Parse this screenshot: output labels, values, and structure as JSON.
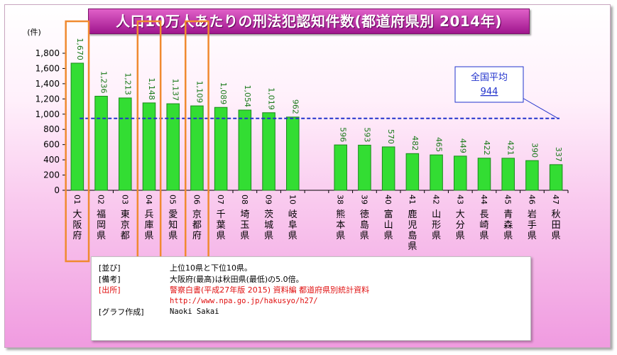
{
  "chart_data": {
    "type": "bar",
    "title": "人口10万人あたりの刑法犯認知件数(都道府県別 2014年)",
    "ylabel": "(件)",
    "ylim": [
      0,
      1800
    ],
    "yticks": [
      "0",
      "200",
      "400",
      "600",
      "800",
      "1,000",
      "1,200",
      "1,400",
      "1,600",
      "1,800"
    ],
    "grid": false,
    "categories": [
      {
        "num": "01",
        "name": "大阪府",
        "value": 1670,
        "label": "1,670",
        "highlight": true
      },
      {
        "num": "02",
        "name": "福岡県",
        "value": 1236,
        "label": "1,236",
        "highlight": false
      },
      {
        "num": "03",
        "name": "東京都",
        "value": 1213,
        "label": "1,213",
        "highlight": false
      },
      {
        "num": "04",
        "name": "兵庫県",
        "value": 1148,
        "label": "1,148",
        "highlight": true
      },
      {
        "num": "05",
        "name": "愛知県",
        "value": 1137,
        "label": "1,137",
        "highlight": false
      },
      {
        "num": "06",
        "name": "京都府",
        "value": 1109,
        "label": "1,109",
        "highlight": true
      },
      {
        "num": "07",
        "name": "千葉県",
        "value": 1089,
        "label": "1,089",
        "highlight": false
      },
      {
        "num": "08",
        "name": "埼玉県",
        "value": 1054,
        "label": "1,054",
        "highlight": false
      },
      {
        "num": "09",
        "name": "茨城県",
        "value": 1019,
        "label": "1,019",
        "highlight": false
      },
      {
        "num": "10",
        "name": "岐阜県",
        "value": 962,
        "label": "962",
        "highlight": false
      },
      {
        "num": "",
        "name": "",
        "value": null,
        "label": "",
        "highlight": false
      },
      {
        "num": "38",
        "name": "熊本県",
        "value": 596,
        "label": "596",
        "highlight": false
      },
      {
        "num": "39",
        "name": "徳島県",
        "value": 593,
        "label": "593",
        "highlight": false
      },
      {
        "num": "40",
        "name": "富山県",
        "value": 570,
        "label": "570",
        "highlight": false
      },
      {
        "num": "41",
        "name": "鹿児島県",
        "value": 482,
        "label": "482",
        "highlight": false
      },
      {
        "num": "42",
        "name": "山形県",
        "value": 465,
        "label": "465",
        "highlight": false
      },
      {
        "num": "43",
        "name": "大分県",
        "value": 449,
        "label": "449",
        "highlight": false
      },
      {
        "num": "44",
        "name": "長崎県",
        "value": 422,
        "label": "422",
        "highlight": false
      },
      {
        "num": "45",
        "name": "青森県",
        "value": 421,
        "label": "421",
        "highlight": false
      },
      {
        "num": "46",
        "name": "岩手県",
        "value": 390,
        "label": "390",
        "highlight": false
      },
      {
        "num": "47",
        "name": "秋田県",
        "value": 337,
        "label": "337",
        "highlight": false
      }
    ],
    "average": {
      "label": "全国平均",
      "value": 944,
      "value_label": "944"
    },
    "colors": {
      "bar": "#33dd33",
      "bar_edge": "#1a8a1a",
      "value_text": "#1a7a1a",
      "highlight_box": "#f08a30",
      "average_line": "#2233cc"
    }
  },
  "notes": [
    {
      "label": "[並び]",
      "text": "上位10県と下位10県。",
      "red": false,
      "mono": false
    },
    {
      "label": "[備考]",
      "text": "大阪府(最高)は秋田県(最低)の5.0倍。",
      "red": false,
      "mono": false
    },
    {
      "label": "[出所]",
      "text": "警察白書(平成27年版 2015) 資料編 都道府県別統計資料",
      "red": true,
      "mono": false
    },
    {
      "label": "",
      "text": "http://www.npa.go.jp/hakusyo/h27/",
      "red": true,
      "mono": true
    },
    {
      "label": "[グラフ作成]",
      "text": "Naoki Sakai",
      "red": false,
      "mono": true
    }
  ]
}
